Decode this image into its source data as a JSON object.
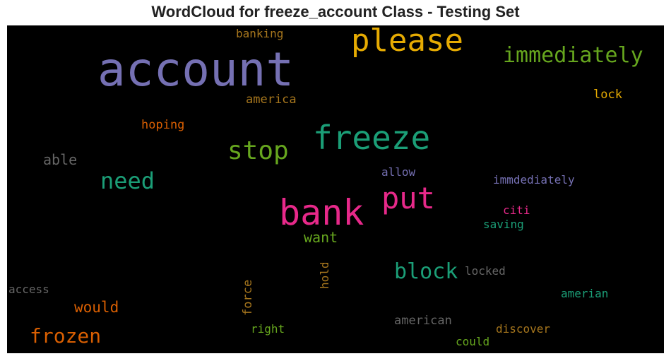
{
  "chart_data": {
    "type": "wordcloud",
    "title": "WordCloud for freeze_account Class - Testing Set",
    "background": "#000000",
    "words": [
      {
        "text": "account",
        "color": "#7570b3"
      },
      {
        "text": "bank",
        "color": "#e7298a"
      },
      {
        "text": "freeze",
        "color": "#1b9e77"
      },
      {
        "text": "please",
        "color": "#e6ab02"
      },
      {
        "text": "put",
        "color": "#e7298a"
      },
      {
        "text": "stop",
        "color": "#66a61e"
      },
      {
        "text": "immediately",
        "color": "#66a61e"
      },
      {
        "text": "need",
        "color": "#1b9e77"
      },
      {
        "text": "block",
        "color": "#1b9e77"
      },
      {
        "text": "frozen",
        "color": "#d95f02"
      },
      {
        "text": "would",
        "color": "#d95f02"
      },
      {
        "text": "want",
        "color": "#66a61e"
      },
      {
        "text": "able",
        "color": "#666666"
      },
      {
        "text": "hoping",
        "color": "#d95f02"
      },
      {
        "text": "america",
        "color": "#a6761d"
      },
      {
        "text": "banking",
        "color": "#a6761d"
      },
      {
        "text": "lock",
        "color": "#e6ab02"
      },
      {
        "text": "allow",
        "color": "#7570b3"
      },
      {
        "text": "immdediately",
        "color": "#7570b3"
      },
      {
        "text": "citi",
        "color": "#e7298a"
      },
      {
        "text": "saving",
        "color": "#1b9e77"
      },
      {
        "text": "hold",
        "color": "#a6761d"
      },
      {
        "text": "force",
        "color": "#a6761d"
      },
      {
        "text": "locked",
        "color": "#666666"
      },
      {
        "text": "access",
        "color": "#666666"
      },
      {
        "text": "amerian",
        "color": "#1b9e77"
      },
      {
        "text": "american",
        "color": "#666666"
      },
      {
        "text": "discover",
        "color": "#a6761d"
      },
      {
        "text": "right",
        "color": "#66a61e"
      },
      {
        "text": "could",
        "color": "#66a61e"
      }
    ]
  }
}
